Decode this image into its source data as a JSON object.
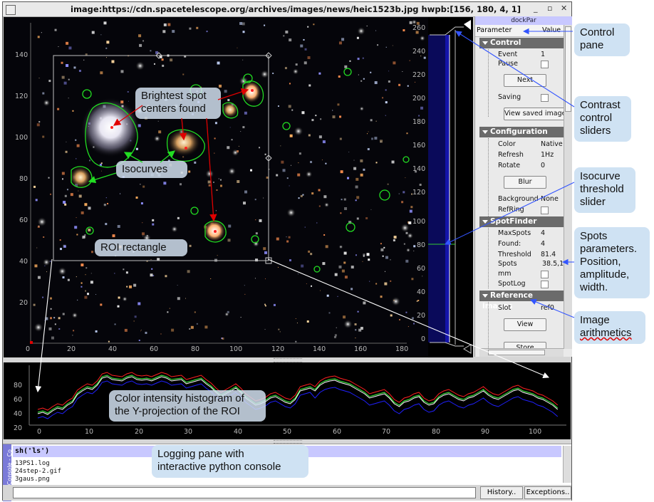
{
  "window": {
    "title": "image:https://cdn.spacetelescope.org/archives/images/news/heic1523b.jpg hwpb:[156, 180, 4, 1]",
    "min": "_",
    "max": "▫",
    "close": "✕"
  },
  "image_axes": {
    "x_ticks": [
      "0",
      "20",
      "40",
      "60",
      "80",
      "100",
      "120",
      "140",
      "160",
      "180"
    ],
    "y_ticks": [
      "140",
      "120",
      "100",
      "80",
      "60",
      "40",
      "20"
    ]
  },
  "histogram": {
    "ticks": [
      "260",
      "240",
      "220",
      "200",
      "180",
      "160",
      "140",
      "120",
      "100",
      "80",
      "60",
      "40",
      "20",
      "0"
    ]
  },
  "dock": {
    "title": "dockPar",
    "col_param": "Parameter",
    "col_value": "Value",
    "groups": [
      {
        "name": "Control",
        "params": [
          {
            "label": "Event",
            "value": "1"
          },
          {
            "label": "Pause",
            "value": ""
          },
          {
            "label": "",
            "value": "Next"
          },
          {
            "label": "Saving",
            "value": ""
          },
          {
            "label": "",
            "value": "View saved images"
          }
        ]
      },
      {
        "name": "Configuration",
        "params": [
          {
            "label": "Color",
            "value": "Native"
          },
          {
            "label": "Refresh",
            "value": "1Hz"
          },
          {
            "label": "Rotate",
            "value": "0"
          },
          {
            "label": "",
            "value": "Blur"
          },
          {
            "label": "Background",
            "value": "None"
          },
          {
            "label": "RefRing",
            "value": ""
          }
        ]
      },
      {
        "name": "SpotFinder",
        "params": [
          {
            "label": "MaxSpots",
            "value": "4"
          },
          {
            "label": "Found:",
            "value": "4"
          },
          {
            "label": "Threshold",
            "value": "81.4"
          },
          {
            "label": "Spots",
            "value": "38.5,1"
          },
          {
            "label": "mm",
            "value": ""
          },
          {
            "label": "SpotLog",
            "value": ""
          }
        ]
      },
      {
        "name": "Reference images",
        "params": [
          {
            "label": "Slot",
            "value": "ref0"
          },
          {
            "label": "",
            "value": "View"
          },
          {
            "label": "",
            "value": "Store"
          }
        ]
      }
    ]
  },
  "plot": {
    "x_ticks": [
      "0",
      "10",
      "20",
      "30",
      "40",
      "50",
      "60",
      "70",
      "80",
      "90",
      "100"
    ],
    "y_ticks": [
      "80",
      "60",
      "40",
      "20"
    ]
  },
  "console": {
    "tab": "kConsole - Co",
    "command": "sh('ls')",
    "output": [
      "13PS1.log",
      "24step-2.gif",
      "3gaus.png"
    ],
    "history_btn": "History..",
    "exceptions_btn": "Exceptions.."
  },
  "annotations": {
    "brightest": [
      "Brightest spot",
      "centers found"
    ],
    "isocurves": "Isocurves",
    "roi": "ROI  rectangle",
    "histogram_label": [
      "Color intensity histogram of",
      "the Y-projection of the ROI"
    ],
    "logging": [
      "Logging pane with",
      "interactive python console"
    ],
    "control_pane": [
      "Control",
      "pane"
    ],
    "contrast": [
      "Contrast",
      "control",
      "sliders"
    ],
    "isocurve_threshold": [
      "Isocurve",
      "threshold",
      "slider"
    ],
    "spots_params": [
      "Spots",
      "parameters.",
      "Position,",
      "amplitude,",
      "width."
    ],
    "image_arith": [
      "Image",
      "arithmetics"
    ]
  },
  "colors": {
    "roi": "#c0c0c0",
    "isocurve": "#22dd22",
    "arrow_red": "#e00000",
    "arrow_blue": "#3355ff",
    "trace_red": "#ff2020",
    "trace_green": "#40ff40",
    "trace_white": "#ffffff",
    "trace_blue": "#2020ff"
  }
}
